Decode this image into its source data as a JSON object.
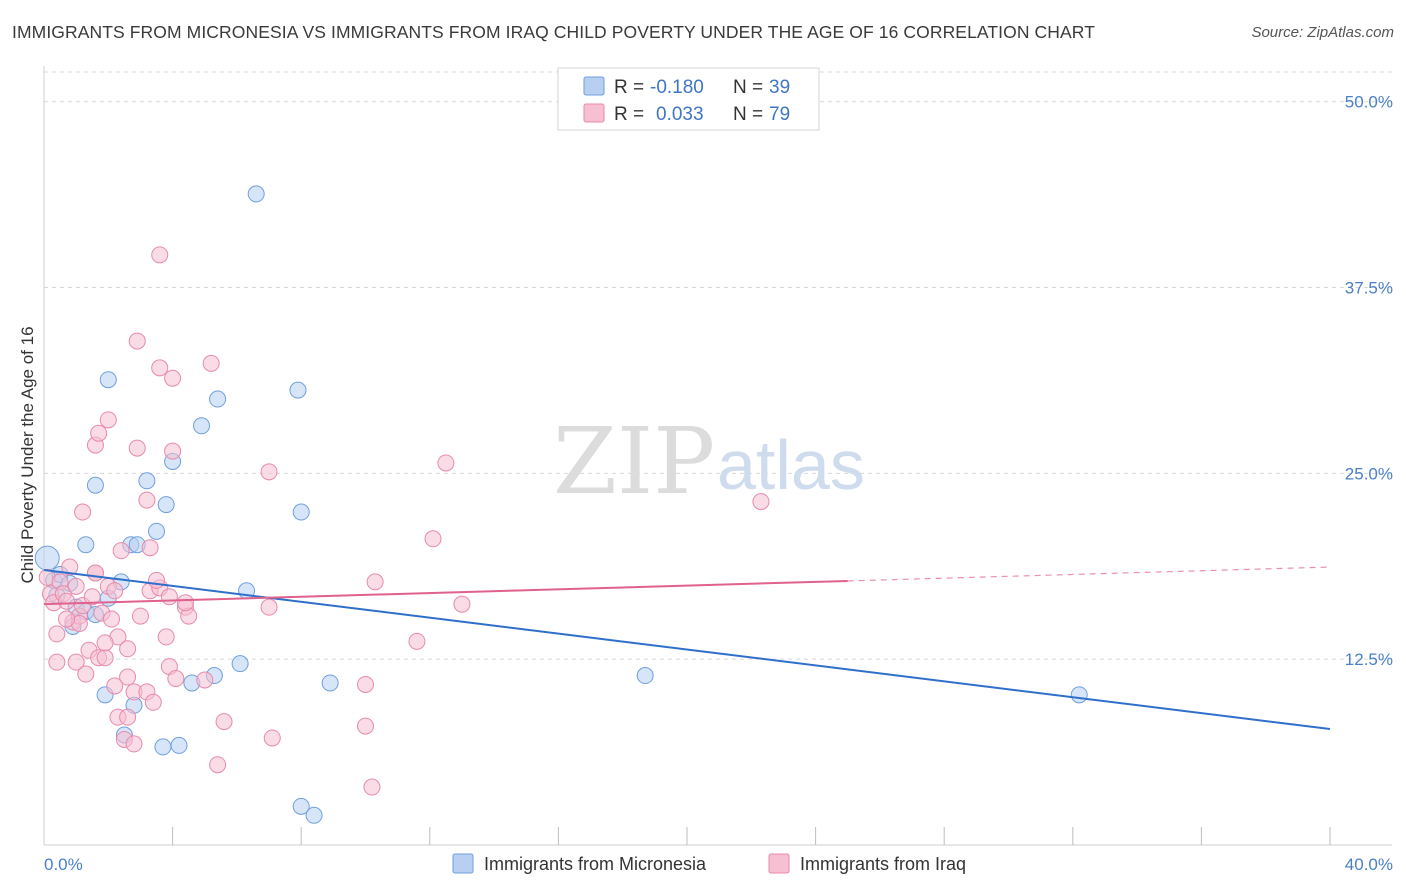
{
  "title": "IMMIGRANTS FROM MICRONESIA VS IMMIGRANTS FROM IRAQ CHILD POVERTY UNDER THE AGE OF 16 CORRELATION CHART",
  "source": "Source: ZipAtlas.com",
  "watermark": {
    "zip": "ZIP",
    "atlas": "atlas"
  },
  "colors": {
    "micronesia_fill": "#b7d0f2",
    "micronesia_stroke": "#6f9fdd",
    "micronesia_line": "#2f6fcc",
    "iraq_fill": "#f6bfd2",
    "iraq_stroke": "#e88aac",
    "iraq_line": "#e0608e",
    "axis_label": "#4a80c8",
    "grid": "#d8d8d8"
  },
  "legend": {
    "rows": [
      {
        "r_label": "R =",
        "r_value": "-0.180",
        "n_label": "N =",
        "n_value": "39"
      },
      {
        "r_label": "R =",
        "r_value": "0.033",
        "n_label": "N =",
        "n_value": "79"
      }
    ]
  },
  "chart_data": {
    "type": "scatter",
    "title": "IMMIGRANTS FROM MICRONESIA VS IMMIGRANTS FROM IRAQ CHILD POVERTY UNDER THE AGE OF 16 CORRELATION CHART",
    "xlabel": "",
    "ylabel": "Child Poverty Under the Age of 16",
    "xlim": [
      0,
      40
    ],
    "ylim": [
      0,
      52
    ],
    "x_tick_labels": [
      {
        "value": 0,
        "label": "0.0%"
      },
      {
        "value": 40,
        "label": "40.0%"
      }
    ],
    "x_minor_ticks": [
      4,
      8,
      12,
      16,
      20,
      24,
      28,
      32,
      36,
      40
    ],
    "y_ticks": [
      {
        "value": 12.5,
        "label": "12.5%"
      },
      {
        "value": 25,
        "label": "25.0%"
      },
      {
        "value": 37.5,
        "label": "37.5%"
      },
      {
        "value": 50,
        "label": "50.0%"
      }
    ],
    "grid": true,
    "legend_position": "top-center",
    "series": [
      {
        "name": "Immigrants from Micronesia",
        "r": -0.18,
        "n": 39,
        "trend": {
          "x0": 0,
          "y0": 18.5,
          "x1": 40,
          "y1": 7.8,
          "dashed_from": null
        },
        "points": [
          [
            0.1,
            19.3
          ],
          [
            0.3,
            17.8
          ],
          [
            0.5,
            18.2
          ],
          [
            0.8,
            17.6
          ],
          [
            0.4,
            16.8
          ],
          [
            1.0,
            16.0
          ],
          [
            1.3,
            15.7
          ],
          [
            1.6,
            15.5
          ],
          [
            0.9,
            14.7
          ],
          [
            2.0,
            16.6
          ],
          [
            2.4,
            17.7
          ],
          [
            1.3,
            20.2
          ],
          [
            2.7,
            20.2
          ],
          [
            2.9,
            20.2
          ],
          [
            3.5,
            21.1
          ],
          [
            3.2,
            24.5
          ],
          [
            1.6,
            24.2
          ],
          [
            3.8,
            22.9
          ],
          [
            4.0,
            25.8
          ],
          [
            4.9,
            28.2
          ],
          [
            5.4,
            30.0
          ],
          [
            2.0,
            31.3
          ],
          [
            7.9,
            30.6
          ],
          [
            8.0,
            22.4
          ],
          [
            6.6,
            43.8
          ],
          [
            6.3,
            17.1
          ],
          [
            6.1,
            12.2
          ],
          [
            5.3,
            11.4
          ],
          [
            4.6,
            10.9
          ],
          [
            8.9,
            10.9
          ],
          [
            1.9,
            10.1
          ],
          [
            2.8,
            9.4
          ],
          [
            2.5,
            7.4
          ],
          [
            3.7,
            6.6
          ],
          [
            4.2,
            6.7
          ],
          [
            8.0,
            2.6
          ],
          [
            8.4,
            2.0
          ],
          [
            18.7,
            11.4
          ],
          [
            32.2,
            10.1
          ]
        ]
      },
      {
        "name": "Immigrants from Iraq",
        "r": 0.033,
        "n": 79,
        "trend": {
          "x0": 0,
          "y0": 16.2,
          "x1": 40,
          "y1": 18.7,
          "dashed_from": 25
        },
        "points": [
          [
            0.1,
            18.0
          ],
          [
            0.2,
            16.9
          ],
          [
            0.3,
            16.3
          ],
          [
            0.5,
            17.7
          ],
          [
            0.6,
            16.9
          ],
          [
            0.7,
            16.4
          ],
          [
            0.4,
            14.2
          ],
          [
            0.9,
            15.0
          ],
          [
            1.1,
            15.4
          ],
          [
            1.2,
            16.1
          ],
          [
            0.8,
            18.7
          ],
          [
            1.6,
            18.3
          ],
          [
            1.5,
            16.7
          ],
          [
            1.8,
            15.6
          ],
          [
            2.0,
            17.4
          ],
          [
            2.1,
            15.2
          ],
          [
            2.3,
            14.0
          ],
          [
            1.4,
            13.1
          ],
          [
            1.0,
            12.3
          ],
          [
            1.3,
            11.5
          ],
          [
            1.7,
            12.6
          ],
          [
            1.9,
            12.6
          ],
          [
            2.6,
            13.2
          ],
          [
            2.6,
            11.3
          ],
          [
            2.8,
            10.3
          ],
          [
            3.2,
            10.3
          ],
          [
            3.4,
            9.6
          ],
          [
            2.2,
            10.7
          ],
          [
            2.3,
            8.6
          ],
          [
            2.6,
            8.6
          ],
          [
            2.5,
            7.1
          ],
          [
            2.8,
            6.8
          ],
          [
            0.4,
            12.3
          ],
          [
            1.1,
            14.9
          ],
          [
            3.0,
            15.4
          ],
          [
            3.3,
            17.1
          ],
          [
            3.6,
            17.3
          ],
          [
            3.9,
            16.7
          ],
          [
            4.4,
            16.0
          ],
          [
            4.5,
            15.4
          ],
          [
            3.8,
            14.0
          ],
          [
            3.9,
            12.0
          ],
          [
            4.1,
            11.2
          ],
          [
            5.0,
            11.1
          ],
          [
            5.6,
            8.3
          ],
          [
            5.4,
            5.4
          ],
          [
            7.1,
            7.2
          ],
          [
            7.0,
            16.0
          ],
          [
            4.4,
            16.3
          ],
          [
            1.2,
            22.4
          ],
          [
            1.6,
            26.9
          ],
          [
            1.7,
            27.7
          ],
          [
            2.0,
            28.6
          ],
          [
            2.4,
            19.8
          ],
          [
            2.9,
            26.7
          ],
          [
            3.2,
            23.2
          ],
          [
            2.9,
            33.9
          ],
          [
            3.6,
            32.1
          ],
          [
            4.0,
            31.4
          ],
          [
            5.2,
            32.4
          ],
          [
            4.0,
            26.5
          ],
          [
            7.0,
            25.1
          ],
          [
            3.6,
            39.7
          ],
          [
            10.0,
            10.8
          ],
          [
            10.3,
            17.7
          ],
          [
            12.1,
            20.6
          ],
          [
            11.6,
            13.7
          ],
          [
            10.0,
            8.0
          ],
          [
            10.2,
            3.9
          ],
          [
            12.5,
            25.7
          ],
          [
            13.0,
            16.2
          ],
          [
            22.3,
            23.1
          ],
          [
            1.0,
            17.4
          ],
          [
            0.7,
            15.2
          ],
          [
            2.2,
            17.1
          ],
          [
            1.6,
            18.3
          ],
          [
            3.3,
            20.0
          ],
          [
            3.5,
            17.8
          ],
          [
            1.9,
            13.6
          ]
        ]
      }
    ]
  }
}
